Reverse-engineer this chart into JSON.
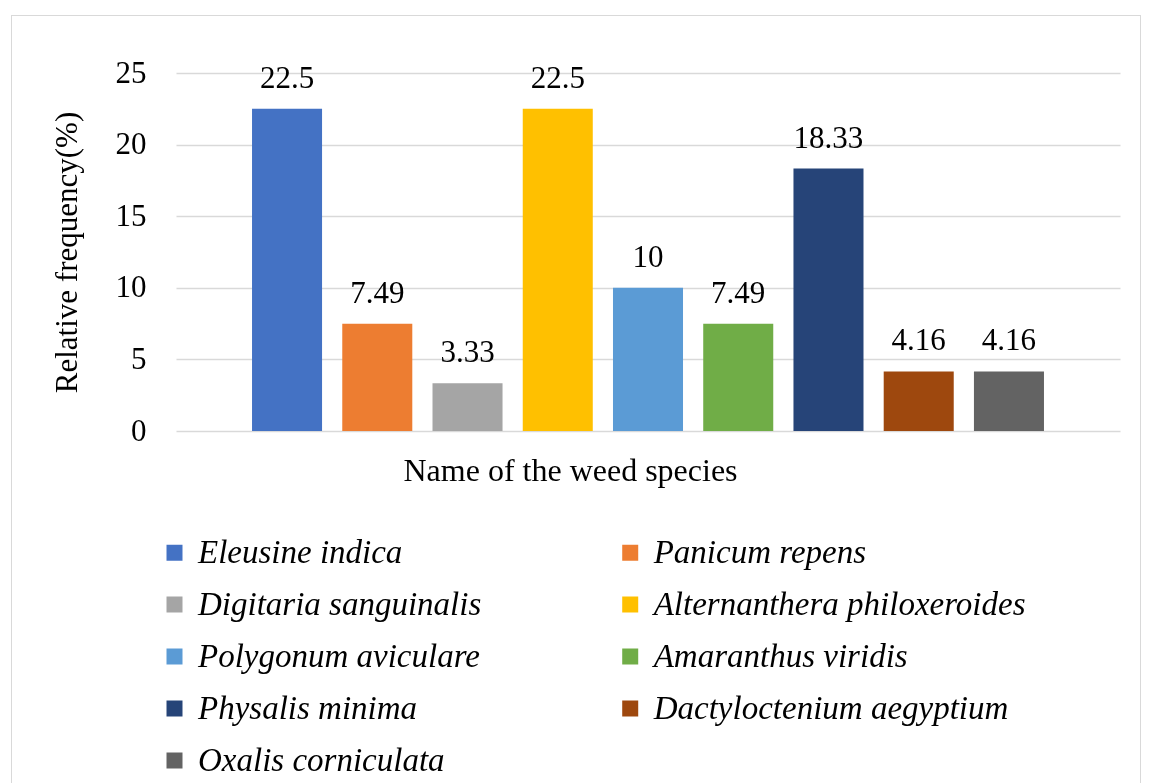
{
  "chart_data": {
    "type": "bar",
    "xlabel": "Name of the weed species",
    "ylabel": "Relative frequency(%)",
    "categories": [
      null
    ],
    "series": [
      {
        "name": "Eleusine indica",
        "color": "#4472c4",
        "values": [
          22.5
        ]
      },
      {
        "name": "Panicum repens",
        "color": "#ed7d31",
        "values": [
          7.49
        ]
      },
      {
        "name": "Digitaria sanguinalis",
        "color": "#a5a5a5",
        "values": [
          3.33
        ]
      },
      {
        "name": "Alternanthera philoxeroides",
        "color": "#ffc000",
        "values": [
          22.5
        ]
      },
      {
        "name": "Polygonum aviculare",
        "color": "#5b9bd5",
        "values": [
          10
        ]
      },
      {
        "name": "Amaranthus viridis",
        "color": "#70ad47",
        "values": [
          7.49
        ]
      },
      {
        "name": "Physalis minima",
        "color": "#264478",
        "values": [
          18.33
        ]
      },
      {
        "name": "Dactyloctenium aegyptium",
        "color": "#9e480e",
        "values": [
          4.16
        ]
      },
      {
        "name": "Oxalis corniculata",
        "color": "#636363",
        "values": [
          4.16
        ]
      }
    ],
    "ylim": [
      0,
      25
    ],
    "yticks": [
      0,
      5,
      10,
      15,
      20,
      25
    ],
    "grid": "y",
    "legend": "bottom",
    "data_labels": true
  }
}
